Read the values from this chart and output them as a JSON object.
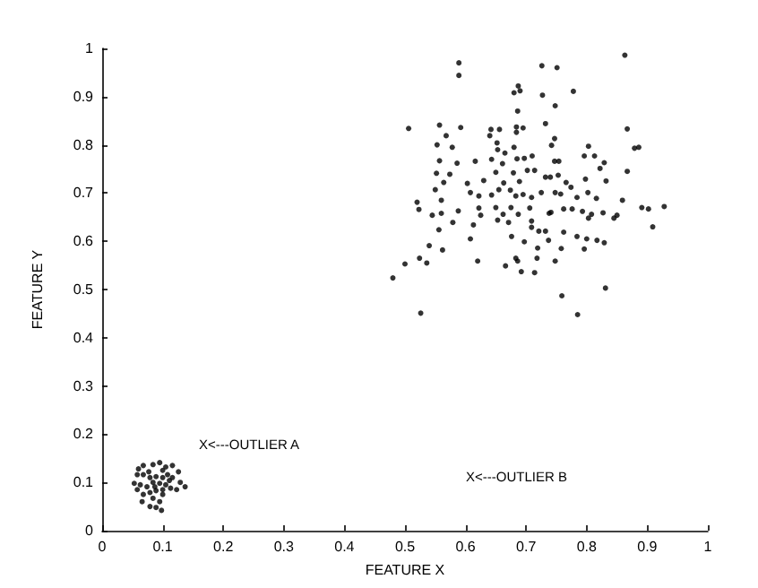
{
  "chart_data": {
    "type": "scatter",
    "xlabel": "FEATURE X",
    "ylabel": "FEATURE Y",
    "xlim": [
      0,
      1
    ],
    "ylim": [
      0,
      1
    ],
    "xticks": [
      0,
      0.1,
      0.2,
      0.3,
      0.4,
      0.5,
      0.6,
      0.7,
      0.8,
      0.9,
      1
    ],
    "yticks": [
      0,
      0.1,
      0.2,
      0.3,
      0.4,
      0.5,
      0.6,
      0.7,
      0.8,
      0.9,
      1
    ],
    "grid": false,
    "marker": "circle",
    "annotations": [
      "X<---OUTLIER A",
      "X<---OUTLIER B"
    ],
    "series": [
      {
        "color": "#000000",
        "x": [
          0.589,
          0.589,
          0.726,
          0.751,
          0.863,
          0.687,
          0.68,
          0.69,
          0.727,
          0.778,
          0.748,
          0.686,
          0.506,
          0.557,
          0.592,
          0.642,
          0.656,
          0.684,
          0.695,
          0.732,
          0.867,
          0.568,
          0.64,
          0.684,
          0.747,
          0.553,
          0.578,
          0.652,
          0.68,
          0.803,
          0.879,
          0.886,
          0.742,
          0.653,
          0.665,
          0.71,
          0.796,
          0.813,
          0.557,
          0.586,
          0.616,
          0.643,
          0.661,
          0.685,
          0.697,
          0.747,
          0.754,
          0.829,
          0.867,
          0.552,
          0.574,
          0.65,
          0.679,
          0.702,
          0.714,
          0.74,
          0.753,
          0.822,
          0.603,
          0.63,
          0.663,
          0.689,
          0.732,
          0.766,
          0.798,
          0.832,
          0.55,
          0.564,
          0.608,
          0.655,
          0.674,
          0.695,
          0.725,
          0.748,
          0.774,
          0.802,
          0.52,
          0.56,
          0.622,
          0.643,
          0.683,
          0.709,
          0.757,
          0.784,
          0.816,
          0.859,
          0.523,
          0.545,
          0.588,
          0.622,
          0.65,
          0.675,
          0.706,
          0.741,
          0.762,
          0.776,
          0.793,
          0.891,
          0.902,
          0.928,
          0.56,
          0.625,
          0.662,
          0.687,
          0.738,
          0.808,
          0.827,
          0.85,
          0.579,
          0.613,
          0.653,
          0.671,
          0.709,
          0.803,
          0.845,
          0.556,
          0.709,
          0.762,
          0.909,
          0.608,
          0.676,
          0.721,
          0.732,
          0.784,
          0.697,
          0.737,
          0.8,
          0.817,
          0.829,
          0.54,
          0.562,
          0.719,
          0.758,
          0.796,
          0.524,
          0.536,
          0.62,
          0.683,
          0.686,
          0.718,
          0.748,
          0.5,
          0.666,
          0.692,
          0.714,
          0.48,
          0.831,
          0.759,
          0.526,
          0.785,
          0.06,
          0.068,
          0.077,
          0.084,
          0.095,
          0.105,
          0.116,
          0.126,
          0.137,
          0.129,
          0.116,
          0.108,
          0.1,
          0.089,
          0.079,
          0.068,
          0.058,
          0.053,
          0.063,
          0.074,
          0.084,
          0.095,
          0.105,
          0.113,
          0.123,
          0.1,
          0.089,
          0.079,
          0.068,
          0.058,
          0.084,
          0.095,
          0.1,
          0.089,
          0.079,
          0.098,
          0.066,
          0.111,
          0.1,
          0.087
        ],
        "values": [
          0.97,
          0.944,
          0.964,
          0.96,
          0.986,
          0.922,
          0.908,
          0.912,
          0.903,
          0.911,
          0.881,
          0.87,
          0.834,
          0.841,
          0.836,
          0.832,
          0.832,
          0.837,
          0.835,
          0.844,
          0.833,
          0.819,
          0.819,
          0.826,
          0.813,
          0.8,
          0.795,
          0.804,
          0.795,
          0.797,
          0.793,
          0.795,
          0.799,
          0.79,
          0.783,
          0.777,
          0.777,
          0.777,
          0.767,
          0.762,
          0.766,
          0.77,
          0.761,
          0.771,
          0.772,
          0.766,
          0.766,
          0.763,
          0.745,
          0.741,
          0.739,
          0.743,
          0.742,
          0.747,
          0.747,
          0.733,
          0.737,
          0.751,
          0.72,
          0.726,
          0.721,
          0.724,
          0.733,
          0.722,
          0.729,
          0.725,
          0.707,
          0.722,
          0.701,
          0.707,
          0.706,
          0.697,
          0.701,
          0.701,
          0.712,
          0.701,
          0.681,
          0.685,
          0.694,
          0.696,
          0.694,
          0.691,
          0.698,
          0.691,
          0.689,
          0.685,
          0.666,
          0.654,
          0.663,
          0.669,
          0.67,
          0.67,
          0.669,
          0.66,
          0.667,
          0.667,
          0.662,
          0.67,
          0.667,
          0.672,
          0.658,
          0.654,
          0.656,
          0.656,
          0.658,
          0.656,
          0.659,
          0.654,
          0.639,
          0.634,
          0.644,
          0.639,
          0.642,
          0.648,
          0.648,
          0.624,
          0.629,
          0.619,
          0.63,
          0.605,
          0.61,
          0.621,
          0.621,
          0.61,
          0.599,
          0.602,
          0.605,
          0.602,
          0.597,
          0.591,
          0.582,
          0.586,
          0.585,
          0.584,
          0.565,
          0.555,
          0.559,
          0.565,
          0.559,
          0.565,
          0.559,
          0.553,
          0.549,
          0.537,
          0.535,
          0.524,
          0.503,
          0.487,
          0.451,
          0.448,
          0.128,
          0.135,
          0.122,
          0.137,
          0.141,
          0.132,
          0.135,
          0.122,
          0.091,
          0.1,
          0.11,
          0.116,
          0.11,
          0.112,
          0.11,
          0.116,
          0.116,
          0.098,
          0.095,
          0.091,
          0.1,
          0.098,
          0.095,
          0.088,
          0.085,
          0.085,
          0.083,
          0.079,
          0.075,
          0.085,
          0.067,
          0.06,
          0.075,
          0.048,
          0.05,
          0.042,
          0.06,
          0.104,
          0.125,
          0.091
        ]
      }
    ]
  }
}
